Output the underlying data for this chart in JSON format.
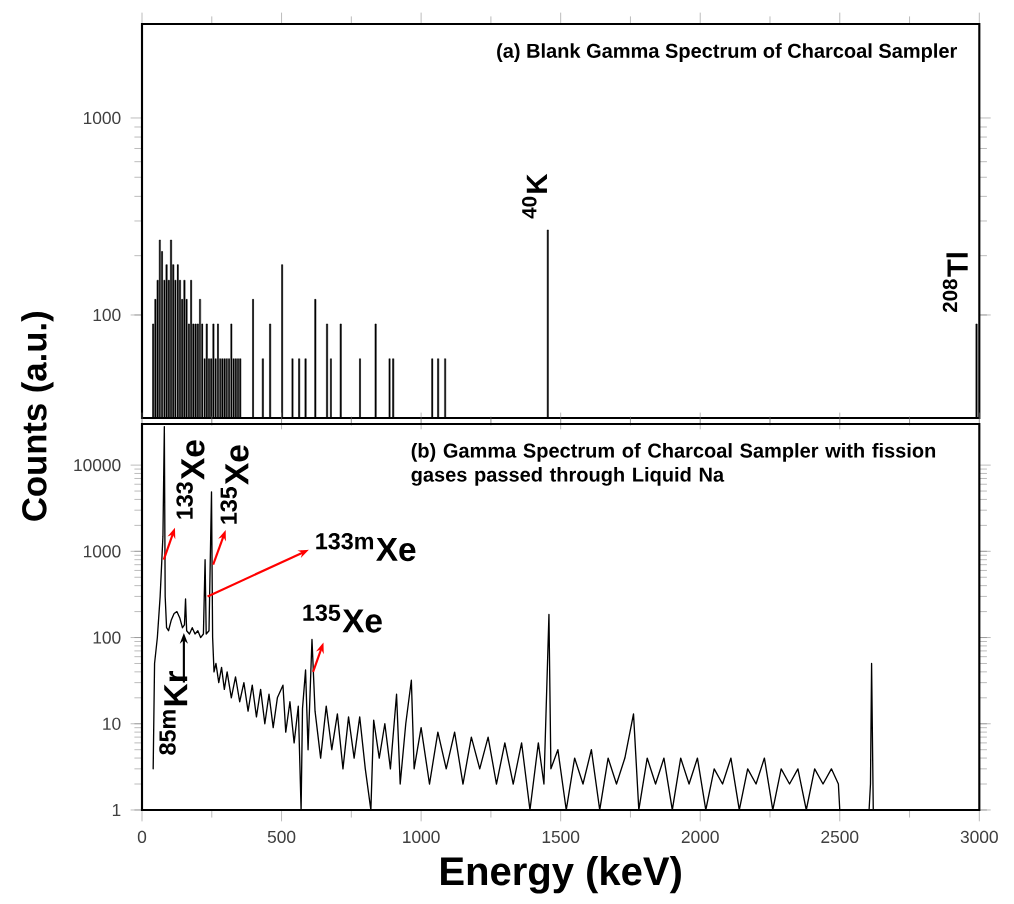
{
  "chart_data": [
    {
      "type": "bar",
      "title": "(a) Blank Gamma Spectrum of Charcoal Sampler",
      "color": "#000000",
      "log": true,
      "tick_labels": "y",
      "xlim": [
        0,
        3000
      ],
      "xticks": [
        0,
        500,
        1000,
        1500,
        2000,
        2500,
        3000
      ],
      "ylim": [
        30,
        3000
      ],
      "yticks": [
        100,
        1000
      ],
      "x": [
        40,
        48,
        56,
        64,
        72,
        80,
        88,
        96,
        104,
        112,
        120,
        128,
        136,
        144,
        152,
        160,
        168,
        176,
        184,
        192,
        200,
        208,
        216,
        224,
        232,
        240,
        248,
        256,
        264,
        272,
        280,
        288,
        296,
        304,
        312,
        320,
        328,
        336,
        344,
        352,
        398,
        433,
        459,
        502,
        539,
        563,
        586,
        621,
        663,
        677,
        712,
        781,
        837,
        887,
        900,
        1040,
        1061,
        1086,
        1454,
        2990
      ],
      "values": [
        90,
        120,
        150,
        240,
        210,
        150,
        180,
        150,
        240,
        180,
        150,
        180,
        150,
        120,
        150,
        120,
        90,
        150,
        90,
        90,
        90,
        120,
        90,
        60,
        90,
        60,
        60,
        90,
        60,
        90,
        60,
        60,
        60,
        60,
        60,
        90,
        60,
        60,
        60,
        60,
        120,
        60,
        90,
        180,
        60,
        60,
        60,
        120,
        90,
        60,
        90,
        60,
        90,
        60,
        60,
        60,
        60,
        60,
        270,
        90
      ],
      "annotations": [
        {
          "text": "$^{40}$K",
          "x": 1454,
          "y": 270
        },
        {
          "text": "$^{208}$Tl",
          "x": 2990,
          "y": 90
        }
      ]
    },
    {
      "type": "line",
      "title": "(b) Gamma Spectrum of Charcoal Sampler with fission gases passed through Liquid Na",
      "xlabel": "Energy (keV)",
      "ylabel": "Counts (a.u.)",
      "color": "#000000",
      "log": true,
      "xlim": [
        0,
        3000
      ],
      "xticks": [
        0,
        500,
        1000,
        1500,
        2000,
        2500,
        3000
      ],
      "ylim": [
        1,
        30000
      ],
      "yticks": [
        1,
        10,
        100,
        1000,
        10000
      ],
      "x": [
        40,
        45,
        55,
        65,
        75,
        80,
        83,
        88,
        95,
        105,
        115,
        125,
        135,
        145,
        152,
        156,
        160,
        170,
        180,
        190,
        200,
        210,
        220,
        226,
        230,
        240,
        249,
        253,
        258,
        265,
        275,
        285,
        295,
        305,
        320,
        335,
        350,
        365,
        380,
        395,
        410,
        425,
        440,
        455,
        470,
        485,
        505,
        515,
        530,
        545,
        560,
        570,
        575,
        586,
        595,
        609,
        620,
        640,
        660,
        680,
        700,
        720,
        740,
        760,
        780,
        800,
        820,
        830,
        850,
        870,
        890,
        912,
        925,
        945,
        965,
        975,
        1000,
        1030,
        1060,
        1090,
        1120,
        1150,
        1180,
        1210,
        1240,
        1270,
        1300,
        1330,
        1360,
        1390,
        1420,
        1440,
        1458,
        1465,
        1490,
        1520,
        1550,
        1580,
        1610,
        1640,
        1670,
        1700,
        1730,
        1761,
        1780,
        1810,
        1840,
        1870,
        1900,
        1930,
        1960,
        1990,
        2020,
        2050,
        2080,
        2110,
        2140,
        2170,
        2200,
        2230,
        2260,
        2290,
        2320,
        2350,
        2380,
        2410,
        2440,
        2470,
        2495,
        2500,
        2605,
        2610,
        2614,
        2620
      ],
      "values": [
        3,
        50,
        100,
        300,
        1500,
        28000,
        300,
        130,
        120,
        160,
        190,
        200,
        170,
        130,
        140,
        280,
        120,
        110,
        130,
        110,
        120,
        100,
        110,
        800,
        110,
        120,
        4900,
        100,
        40,
        50,
        30,
        45,
        25,
        40,
        20,
        35,
        18,
        30,
        14,
        28,
        12,
        25,
        10,
        22,
        9,
        20,
        28,
        8,
        18,
        6,
        16,
        1,
        15,
        42,
        5,
        95,
        14,
        4,
        16,
        5,
        13,
        3,
        12,
        4,
        12,
        3,
        1,
        11,
        4,
        10,
        3,
        22,
        2,
        10,
        32,
        3,
        9,
        2,
        8,
        3,
        8,
        2,
        7,
        3,
        7,
        2,
        6,
        2,
        6,
        1,
        6,
        2,
        185,
        3,
        5,
        1,
        4,
        2,
        5,
        1,
        4,
        2,
        4,
        13,
        1,
        4,
        2,
        4,
        1,
        4,
        2,
        4,
        1,
        3,
        2,
        4,
        1,
        3,
        2,
        4,
        1,
        3,
        2,
        3,
        1,
        3,
        2,
        3,
        2,
        1,
        1,
        2,
        50,
        1
      ],
      "annotations": [
        {
          "text": "$^{133}$Xe",
          "x": 78,
          "y": 800
        },
        {
          "text": "$^{135}$Xe",
          "x": 255,
          "y": 700
        },
        {
          "text": "$^{133m}$Xe",
          "x": 235,
          "y": 300
        },
        {
          "text": "$^{135}$Xe",
          "x": 613,
          "y": 40
        },
        {
          "text": "$^{85m}$Kr",
          "x": 150,
          "y": 140
        }
      ]
    }
  ]
}
